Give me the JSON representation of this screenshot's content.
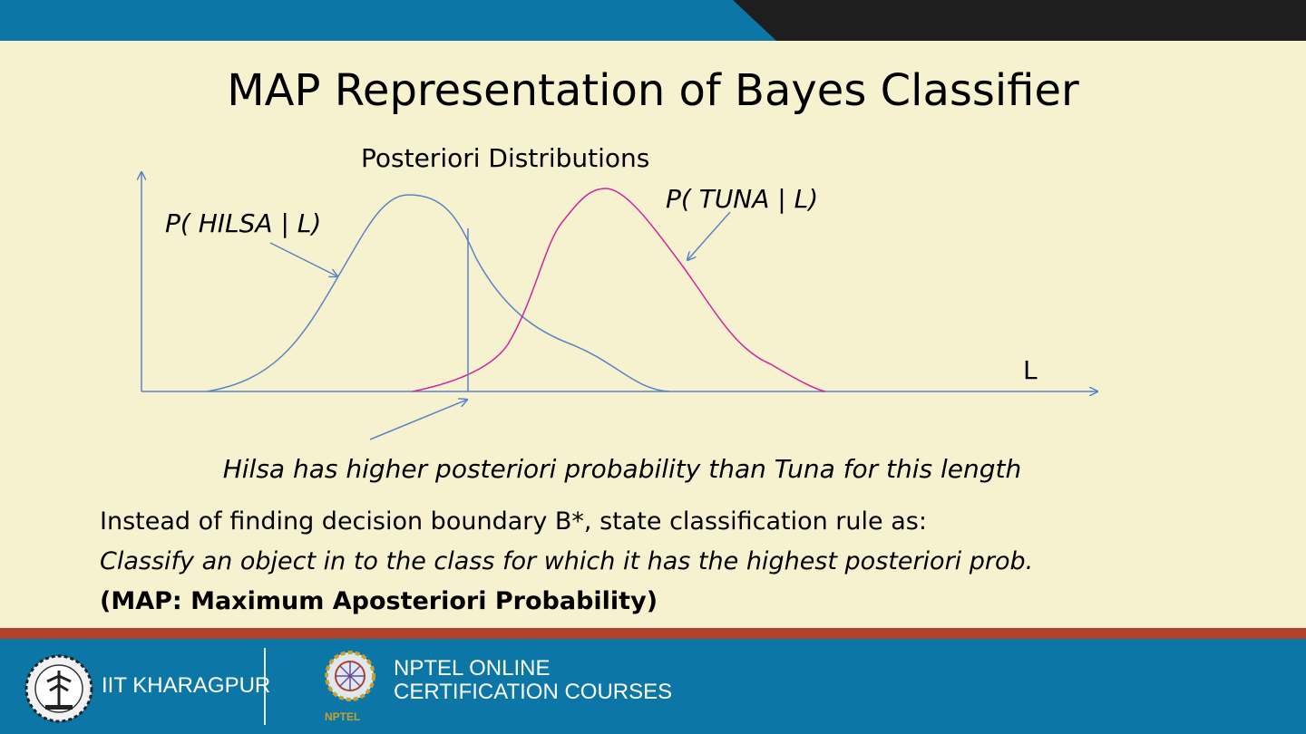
{
  "title": "MAP Representation of Bayes Classifier",
  "diagram": {
    "heading": "Posteriori Distributions",
    "label_hilsa": "P( HILSA | L)",
    "label_tuna": "P( TUNA | L)",
    "axis_label": "L",
    "caption": "Hilsa has higher posteriori probability than Tuna for this length",
    "colors": {
      "hilsa_curve": "#5b84c4",
      "tuna_curve": "#d0259e",
      "axis": "#5b84c4"
    }
  },
  "body": {
    "line1": "Instead of finding decision boundary B*, state classification rule as:",
    "line2": "Classify an object in to the class for which it has the highest posteriori prob.",
    "line3": "(MAP: Maximum Aposteriori Probability)"
  },
  "footer": {
    "institute": "IIT KHARAGPUR",
    "program_line1": "NPTEL ONLINE",
    "program_line2": "CERTIFICATION COURSES",
    "program_short": "NPTEL",
    "colors": {
      "bar": "#0c77a6",
      "stripe": "#b0412a"
    }
  },
  "header_colors": {
    "blue": "#0c77a6",
    "dark": "#1e1e1e"
  }
}
